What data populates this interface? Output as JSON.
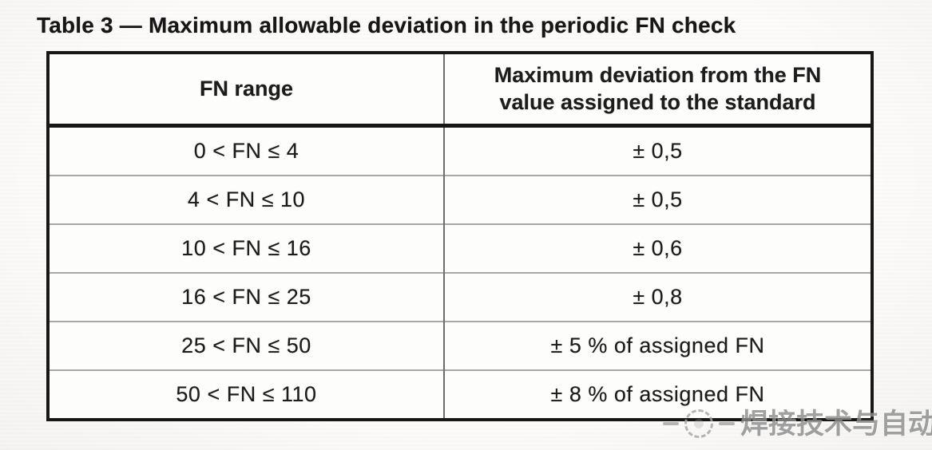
{
  "document": {
    "title": "Table 3 — Maximum allowable deviation in the periodic FN check"
  },
  "table": {
    "columns": [
      "FN range",
      "Maximum deviation from the FN value assigned to the standard"
    ],
    "rows": [
      [
        "0 < FN ≤ 4",
        "± 0,5"
      ],
      [
        "4 < FN ≤ 10",
        "± 0,5"
      ],
      [
        "10 < FN ≤ 16",
        "± 0,6"
      ],
      [
        "16 < FN ≤ 25",
        "± 0,8"
      ],
      [
        "25 < FN ≤ 50",
        "± 5 % of assigned FN"
      ],
      [
        "50 < FN ≤ 110",
        "± 8 % of assigned FN"
      ]
    ]
  },
  "watermark": {
    "logo": "dashed-circle-logo",
    "text": "焊接技术与自动化",
    "color": "#8d8d8d"
  },
  "colors": {
    "outer_border": "#171717",
    "header_separator": "#171717",
    "row_divider": "#a8a8a8",
    "column_divider": "#6e6e6e",
    "text": "#1c1c1c",
    "background": "#fcfbfa"
  }
}
